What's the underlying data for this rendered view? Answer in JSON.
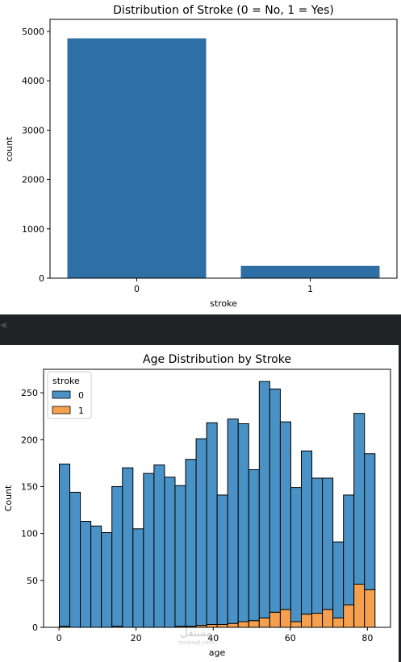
{
  "chart_data": [
    {
      "type": "bar",
      "title": "Distribution of Stroke (0 = No, 1 = Yes)",
      "xlabel": "stroke",
      "ylabel": "count",
      "categories": [
        "0",
        "1"
      ],
      "values": [
        4861,
        249
      ],
      "ylim": [
        0,
        5000
      ],
      "yticks": [
        0,
        1000,
        2000,
        3000,
        4000,
        5000
      ],
      "color": "#2e6fa6",
      "grid": false
    },
    {
      "type": "bar",
      "subtype": "stacked-histogram",
      "title": "Age Distribution by Stroke",
      "xlabel": "age",
      "ylabel": "Count",
      "legend_title": "stroke",
      "legend_position": "top-left",
      "bin_edges": [
        0.08,
        2.81,
        5.54,
        8.27,
        11.0,
        13.73,
        16.46,
        19.19,
        21.92,
        24.65,
        27.38,
        30.11,
        32.84,
        35.57,
        38.3,
        41.03,
        43.76,
        46.49,
        49.22,
        51.95,
        54.68,
        57.41,
        60.14,
        62.87,
        65.6,
        68.33,
        71.06,
        73.79,
        76.52,
        79.25,
        81.98
      ],
      "series": [
        {
          "name": "0",
          "color": "#4a92c6",
          "values": [
            173,
            144,
            113,
            108,
            101,
            149,
            170,
            105,
            164,
            173,
            160,
            150,
            178,
            199,
            215,
            138,
            218,
            211,
            161,
            252,
            238,
            200,
            143,
            174,
            144,
            140,
            81,
            117,
            182,
            145
          ]
        },
        {
          "name": "1",
          "color": "#f5a04f",
          "values": [
            1,
            0,
            0,
            0,
            0,
            1,
            0,
            0,
            0,
            0,
            0,
            1,
            1,
            2,
            3,
            3,
            4,
            6,
            7,
            10,
            16,
            19,
            6,
            14,
            15,
            19,
            10,
            24,
            46,
            40
          ]
        }
      ],
      "xticks": [
        0,
        20,
        40,
        60,
        80
      ],
      "yticks": [
        0,
        50,
        100,
        150,
        200,
        250
      ],
      "xlim": [
        -4.0,
        86.0
      ],
      "ylim": [
        0,
        275
      ],
      "grid": false
    }
  ],
  "watermark": {
    "main": "مستقل",
    "sub": "mostaql.com"
  },
  "colors": {
    "background_dark": "#1f2326"
  }
}
